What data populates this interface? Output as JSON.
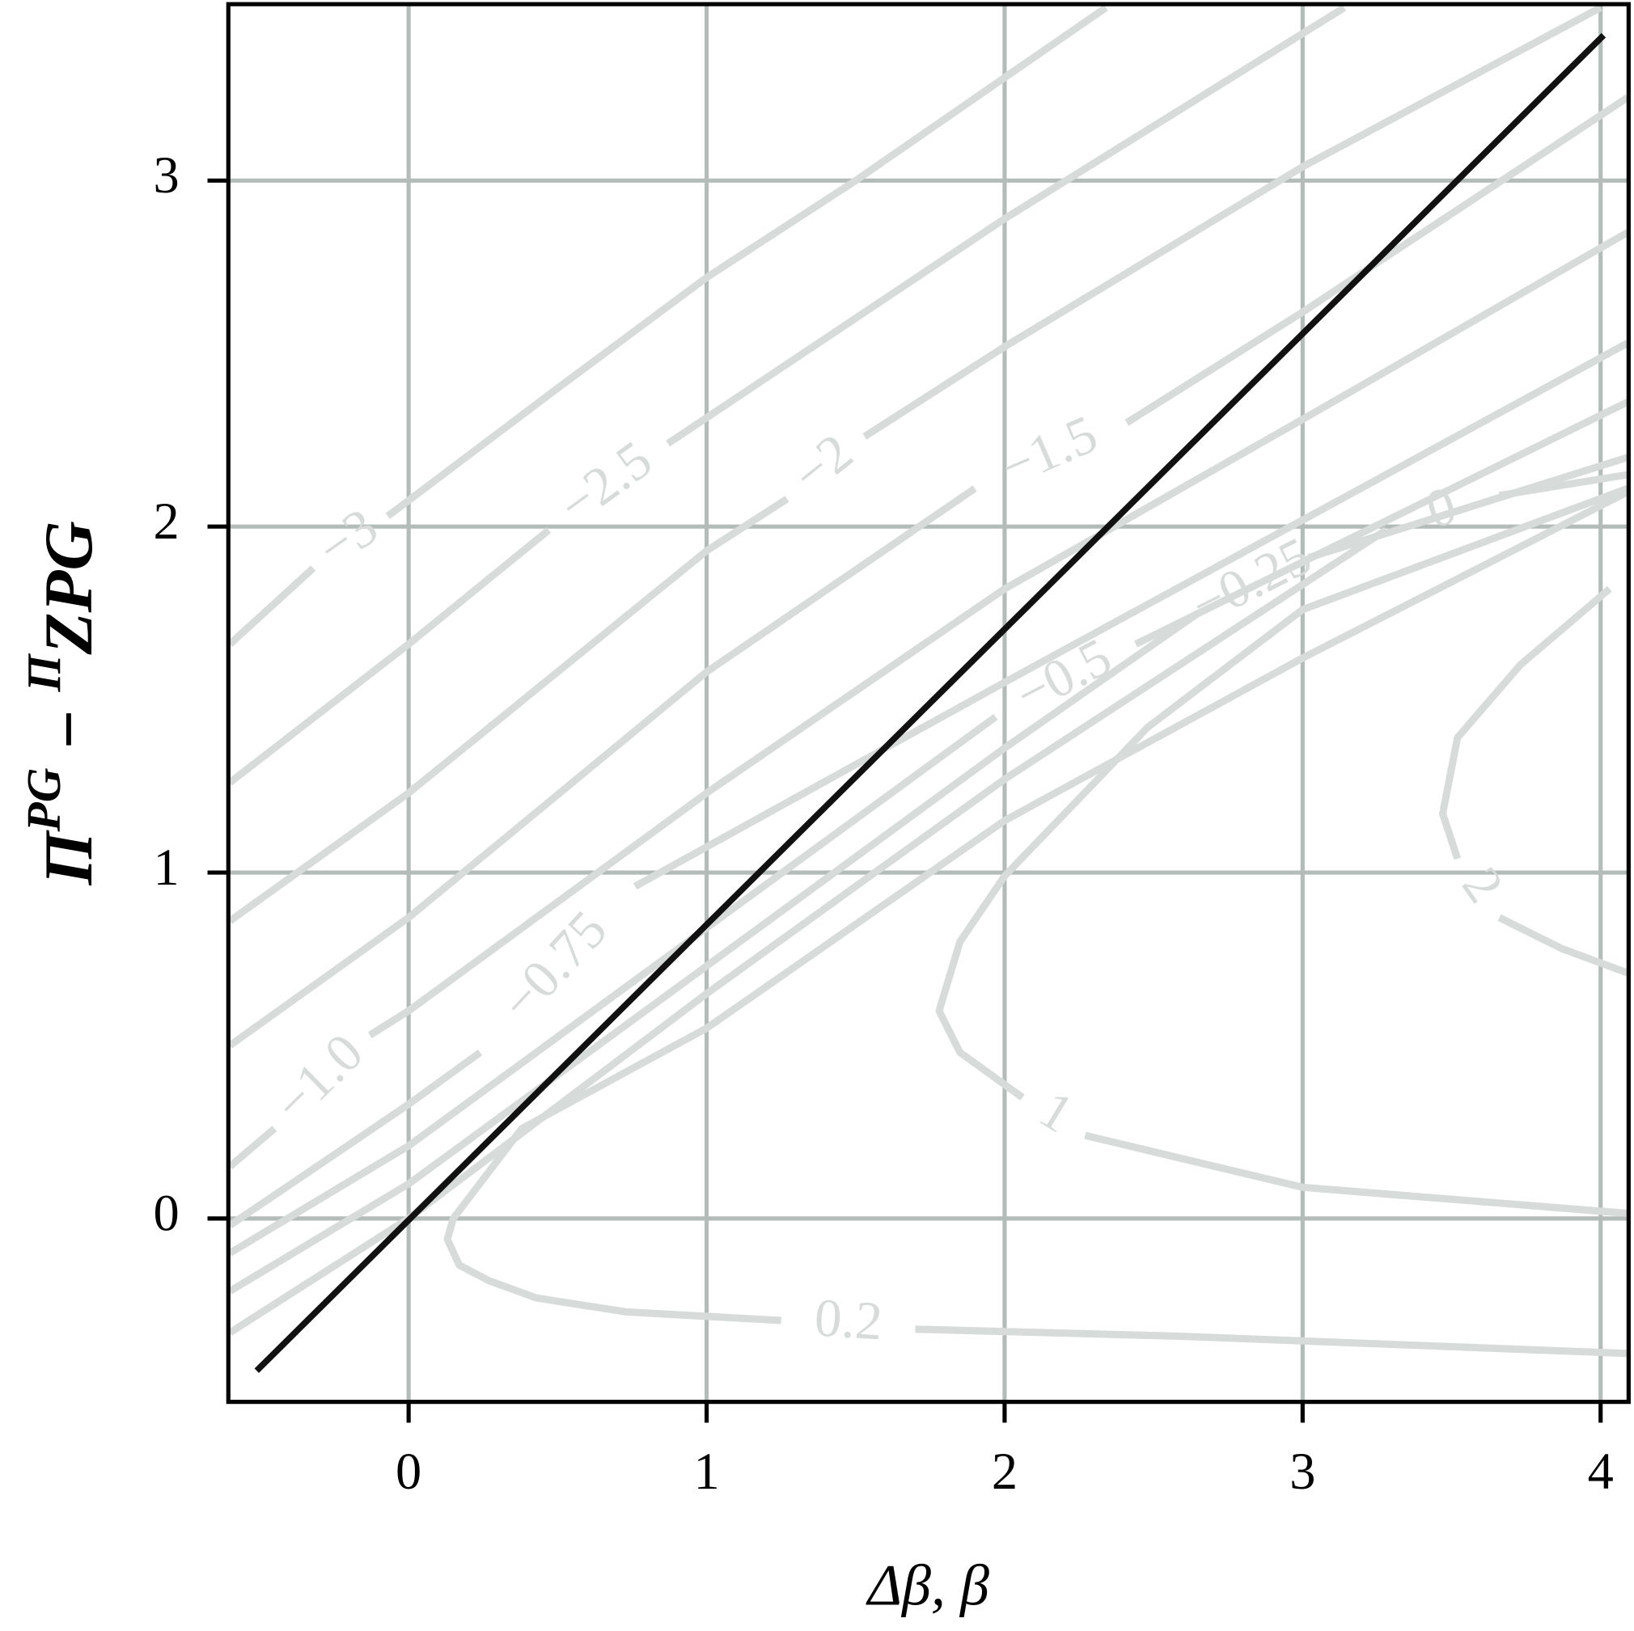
{
  "chart_data": {
    "type": "contour",
    "xlabel": "Δβ, β",
    "ylabel": [
      "Π",
      "PG",
      " − ",
      "Π",
      "ZPG"
    ],
    "xlim": [
      -0.605,
      4.094
    ],
    "ylim": [
      -0.53,
      3.51
    ],
    "xticks": [
      0,
      1,
      2,
      3,
      4
    ],
    "yticks": [
      0,
      1,
      2,
      3
    ],
    "grid": true,
    "series": [
      {
        "name": "−3",
        "color": "#d7dbd9",
        "x": [
          -0.6,
          -0.32,
          null,
          -0.07,
          0.5,
          1.0,
          1.5,
          2.34
        ],
        "y": [
          1.66,
          1.88,
          null,
          2.03,
          2.4,
          2.72,
          3.0,
          3.5
        ]
      },
      {
        "name": "−2.5",
        "color": "#d7dbd9",
        "x": [
          -0.6,
          0.0,
          0.47,
          null,
          0.87,
          2.0,
          3.14
        ],
        "y": [
          1.26,
          1.66,
          1.99,
          null,
          2.24,
          2.89,
          3.5
        ]
      },
      {
        "name": "−2",
        "color": "#d7dbd9",
        "x": [
          -0.6,
          0.0,
          1.0,
          1.27,
          null,
          1.53,
          2.0,
          3.0,
          4.0
        ],
        "y": [
          0.86,
          1.23,
          1.93,
          2.08,
          null,
          2.26,
          2.52,
          3.04,
          3.5
        ]
      },
      {
        "name": "−1.5",
        "color": "#d7dbd9",
        "x": [
          -0.6,
          0.0,
          1.0,
          1.9,
          null,
          2.41,
          3.0,
          4.09
        ],
        "y": [
          0.5,
          0.87,
          1.58,
          2.11,
          null,
          2.3,
          2.62,
          3.24
        ]
      },
      {
        "name": "−1.0",
        "color": "#d7dbd9",
        "x": [
          -0.6,
          -0.45,
          null,
          -0.13,
          0.0,
          1.0,
          2.0,
          3.0,
          4.09
        ],
        "y": [
          0.15,
          0.26,
          null,
          0.53,
          0.6,
          1.23,
          1.82,
          2.31,
          2.85
        ]
      },
      {
        "name": "−0.75",
        "color": "#d7dbd9",
        "x": [
          -0.6,
          0.0,
          0.24,
          null,
          0.76,
          2.0,
          4.09
        ],
        "y": [
          -0.02,
          0.33,
          0.48,
          null,
          0.96,
          1.55,
          2.53
        ]
      },
      {
        "name": "−0.5",
        "color": "#d7dbd9",
        "x": [
          -0.6,
          0.0,
          1.0,
          1.97,
          null,
          2.44,
          4.09
        ],
        "y": [
          -0.1,
          0.21,
          0.84,
          1.45,
          null,
          1.66,
          2.36
        ]
      },
      {
        "name": "−0.25",
        "color": "#d7dbd9",
        "x": [
          -0.6,
          0.0,
          1.0,
          2.0,
          2.65,
          null,
          3.02,
          4.09
        ],
        "y": [
          -0.21,
          0.1,
          0.73,
          1.36,
          1.75,
          null,
          1.91,
          2.2
        ]
      },
      {
        "name": "0",
        "color": "#d7dbd9",
        "x": [
          -0.6,
          0.0,
          1.0,
          2.0,
          3.28,
          null,
          3.66,
          4.09
        ],
        "y": [
          -0.33,
          0.0,
          0.65,
          1.27,
          1.99,
          null,
          2.09,
          2.15
        ]
      },
      {
        "name": "0.2",
        "color": "#d7dbd9",
        "x": [
          4.09,
          3.0,
          2.0,
          1.0,
          0.38,
          0.15,
          0.13,
          0.17,
          0.27,
          0.43,
          0.73,
          1.25,
          null,
          1.7,
          2.58,
          4.09
        ],
        "y": [
          2.1,
          1.62,
          1.15,
          0.55,
          0.26,
          0.0,
          -0.06,
          -0.135,
          -0.18,
          -0.23,
          -0.27,
          -0.295,
          null,
          -0.32,
          -0.34,
          -0.39
        ]
      },
      {
        "name": "1",
        "color": "#d7dbd9",
        "x": [
          4.09,
          3.0,
          2.48,
          2.0,
          1.85,
          1.78,
          1.85,
          2.06,
          null,
          2.27,
          3.0,
          4.09
        ],
        "y": [
          2.11,
          1.76,
          1.42,
          0.99,
          0.8,
          0.6,
          0.48,
          0.35,
          null,
          0.24,
          0.09,
          0.015
        ]
      },
      {
        "name": "2",
        "color": "#d7dbd9",
        "x": [
          4.03,
          3.73,
          3.52,
          3.47,
          3.52,
          null,
          3.66,
          3.87,
          4.09
        ],
        "y": [
          1.82,
          1.6,
          1.39,
          1.17,
          1.04,
          null,
          0.87,
          0.78,
          0.71
        ]
      },
      {
        "color": "#111111",
        "x": [
          -0.51,
          4.01
        ],
        "y": [
          -0.44,
          3.42
        ]
      }
    ]
  }
}
